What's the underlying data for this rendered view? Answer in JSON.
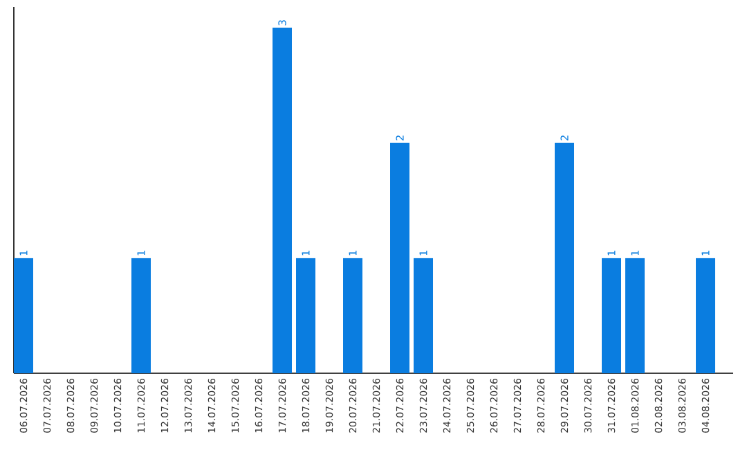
{
  "chart_data": {
    "type": "bar",
    "categories": [
      "06.07.2026",
      "07.07.2026",
      "08.07.2026",
      "09.07.2026",
      "10.07.2026",
      "11.07.2026",
      "12.07.2026",
      "13.07.2026",
      "14.07.2026",
      "15.07.2026",
      "16.07.2026",
      "17.07.2026",
      "18.07.2026",
      "19.07.2026",
      "20.07.2026",
      "21.07.2026",
      "22.07.2026",
      "23.07.2026",
      "24.07.2026",
      "25.07.2026",
      "26.07.2026",
      "27.07.2026",
      "28.07.2026",
      "29.07.2026",
      "30.07.2026",
      "31.07.2026",
      "01.08.2026",
      "02.08.2026",
      "03.08.2026",
      "04.08.2026"
    ],
    "values": [
      1,
      0,
      0,
      0,
      0,
      1,
      0,
      0,
      0,
      0,
      0,
      3,
      1,
      0,
      1,
      0,
      2,
      1,
      0,
      0,
      0,
      0,
      0,
      2,
      0,
      1,
      1,
      0,
      0,
      1
    ],
    "value_labels": [
      "1",
      null,
      null,
      null,
      null,
      "1",
      null,
      null,
      null,
      null,
      null,
      "3",
      "1",
      null,
      "1",
      null,
      "2",
      "1",
      null,
      null,
      null,
      null,
      null,
      "2",
      null,
      "1",
      "1",
      null,
      null,
      "1"
    ],
    "color": "#0a7de0",
    "ylim": [
      0,
      3.18
    ],
    "tick_labels": "x"
  }
}
